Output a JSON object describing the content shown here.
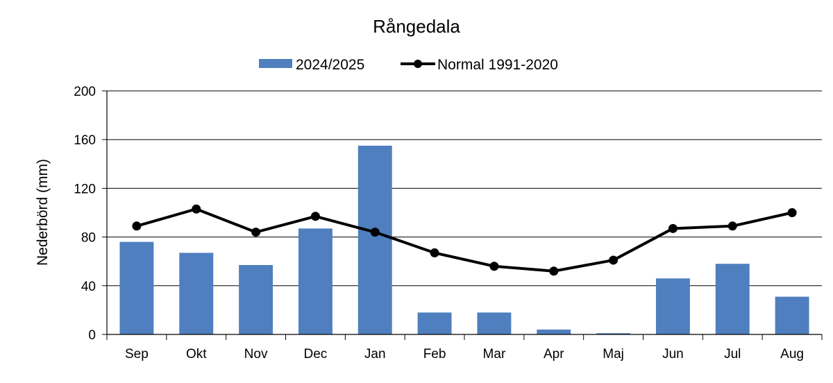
{
  "chart_data": {
    "type": "bar",
    "title": "Rångedala",
    "xlabel": "",
    "ylabel": "Nederbörd (mm)",
    "ylim": [
      0,
      200
    ],
    "yticks": [
      0,
      40,
      80,
      120,
      160,
      200
    ],
    "grid": true,
    "legend_position": "top",
    "categories": [
      "Sep",
      "Okt",
      "Nov",
      "Dec",
      "Jan",
      "Feb",
      "Mar",
      "Apr",
      "Maj",
      "Jun",
      "Jul",
      "Aug"
    ],
    "series": [
      {
        "name": "2024/2025",
        "type": "bar",
        "color": "#4f7fbe",
        "values": [
          76,
          67,
          57,
          87,
          155,
          18,
          18,
          4,
          1,
          46,
          58,
          31
        ]
      },
      {
        "name": "Normal 1991-2020",
        "type": "line",
        "color": "#000000",
        "values": [
          89,
          103,
          84,
          97,
          84,
          67,
          56,
          52,
          61,
          87,
          89,
          100
        ]
      }
    ]
  }
}
